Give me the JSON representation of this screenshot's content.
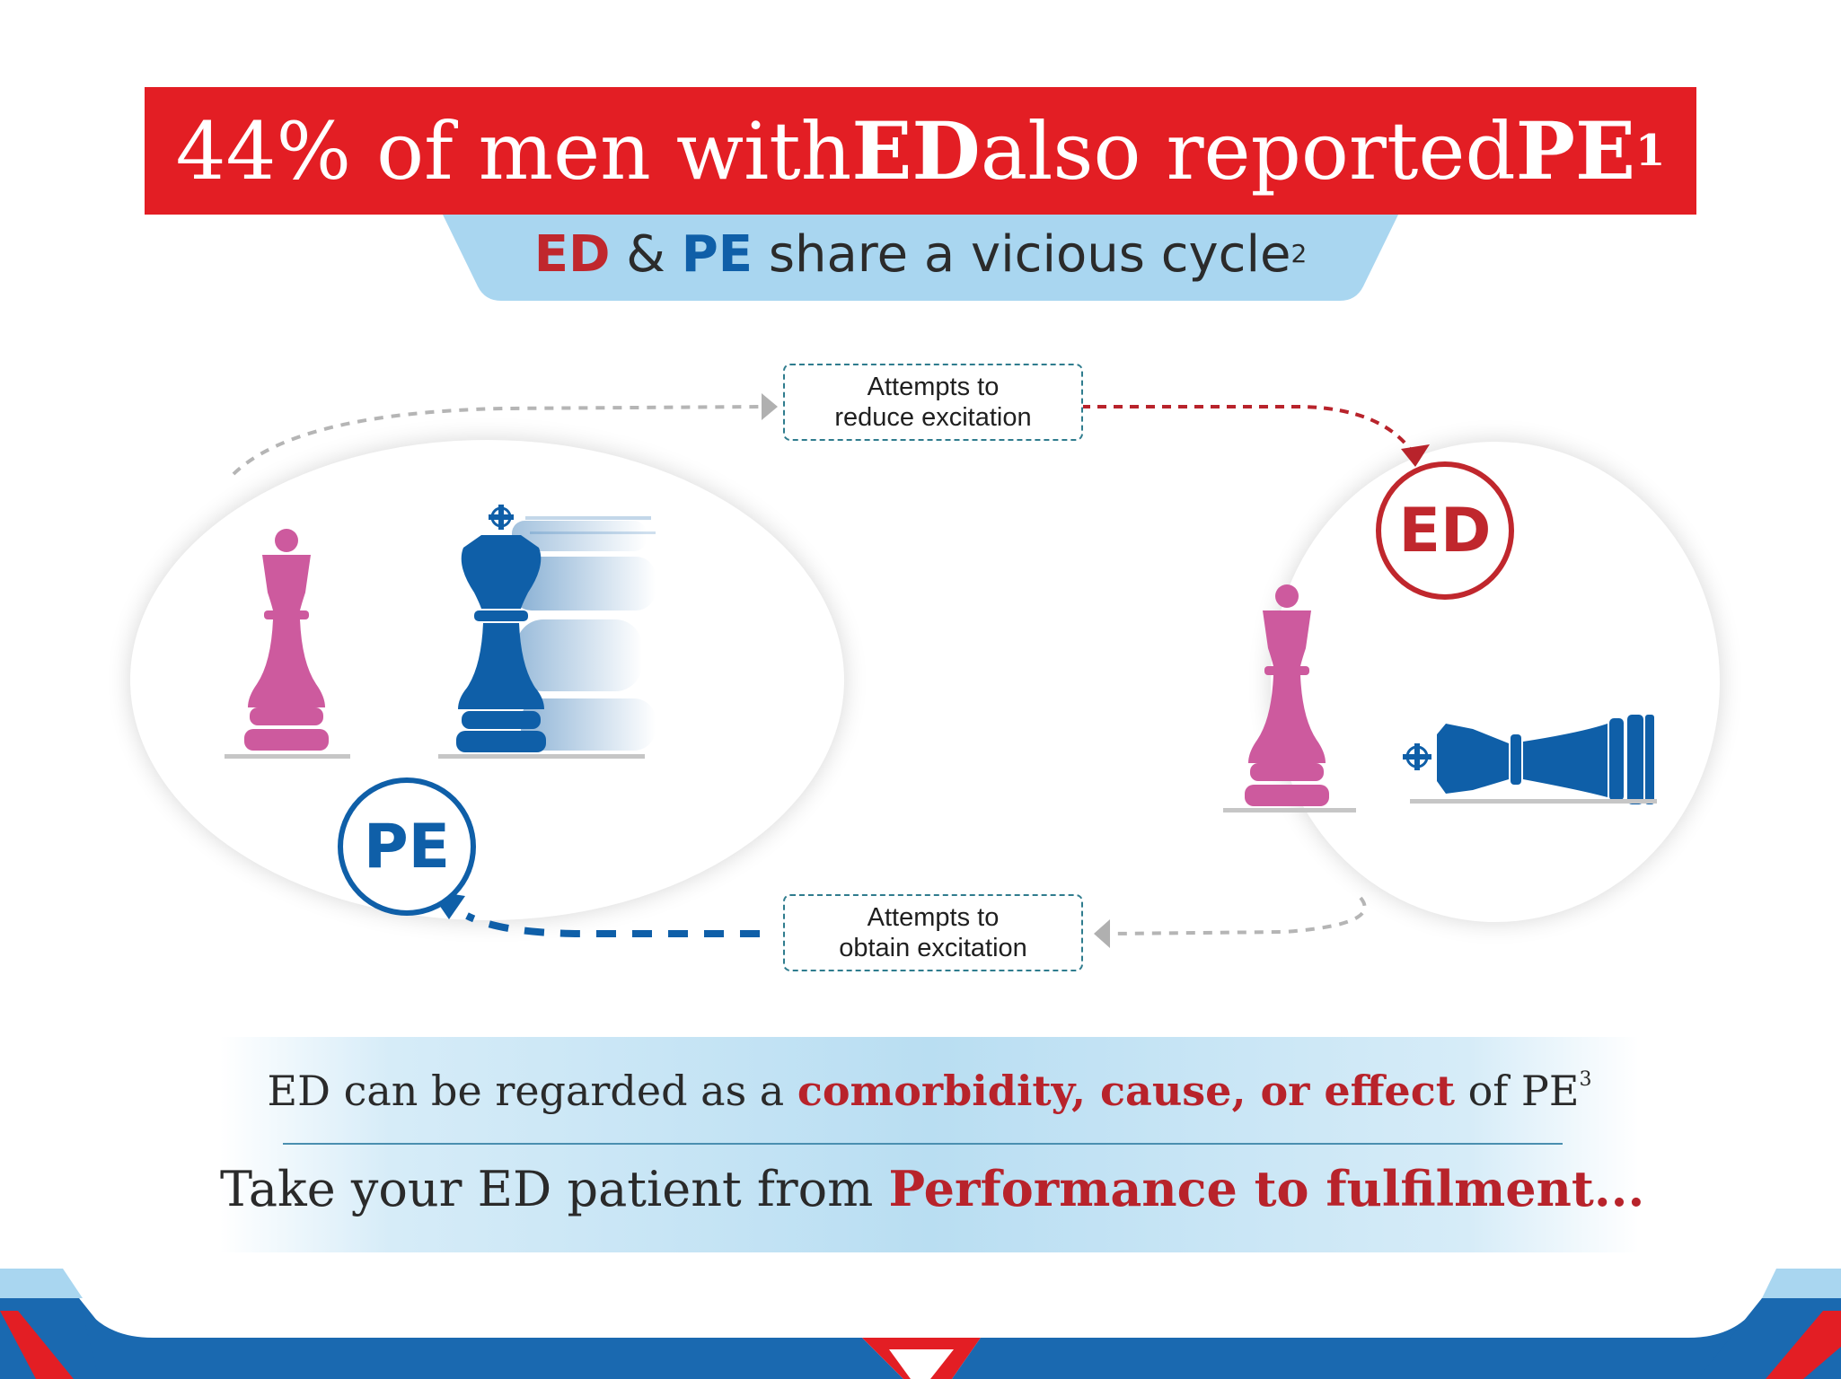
{
  "headline": {
    "part1": "44% of men with ",
    "ed": "ED",
    "part2": " also reported ",
    "pe": "PE",
    "ref": "1"
  },
  "subtitle": {
    "ed": "ED",
    "amp": " & ",
    "pe": "PE",
    "rest": " share a vicious cycle",
    "ref": "2"
  },
  "cycle": {
    "top_box": {
      "line1": "Attempts to",
      "line2": "reduce excitation"
    },
    "bottom_box": {
      "line1": "Attempts to",
      "line2": "obtain excitation"
    },
    "ed_label": "ED",
    "pe_label": "PE"
  },
  "info": {
    "line1": {
      "before": "ED can be regarded as a ",
      "highlight": "comorbidity, cause, or effect",
      "after": " of PE",
      "ref": "3"
    },
    "line2": {
      "before": "Take your ED patient from ",
      "highlight": "Performance to fulfilment..."
    }
  },
  "icons": [
    "queen-pink",
    "king-blue-standing",
    "king-blue-fallen"
  ],
  "colors": {
    "red": "#e31e24",
    "dark_red": "#c0272d",
    "blue": "#0f5fa8",
    "light_blue": "#a9d6f0",
    "pink": "#cd5a9e"
  }
}
